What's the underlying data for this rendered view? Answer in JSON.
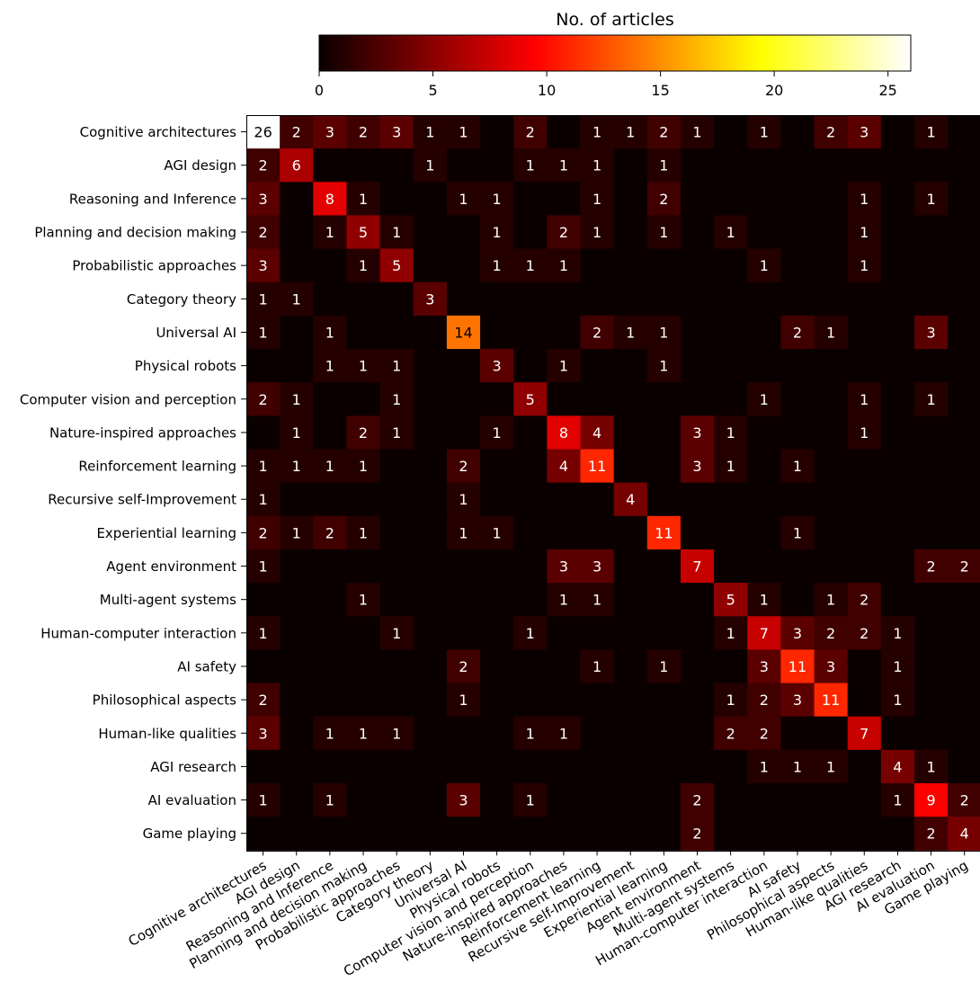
{
  "chart_data": {
    "type": "heatmap",
    "title": "",
    "xlabel": "",
    "ylabel": "",
    "colorbar": {
      "label": "No. of articles",
      "ticks": [
        0,
        5,
        10,
        15,
        20,
        25
      ],
      "range": [
        0,
        26
      ],
      "colormap": "hot"
    },
    "categories": [
      "Cognitive architectures",
      "AGI design",
      "Reasoning and Inference",
      "Planning and decision making",
      "Probabilistic approaches",
      "Category theory",
      "Universal AI",
      "Physical robots",
      "Computer vision and perception",
      "Nature-inspired approaches",
      "Reinforcement learning",
      "Recursive self-Improvement",
      "Experiential learning",
      "Agent environment",
      "Multi-agent systems",
      "Human-computer interaction",
      "AI safety",
      "Philosophical aspects",
      "Human-like qualities",
      "AGI research",
      "AI evaluation",
      "Game playing"
    ],
    "matrix": [
      [
        26,
        2,
        3,
        2,
        3,
        1,
        1,
        0,
        2,
        0,
        1,
        1,
        2,
        1,
        0,
        1,
        0,
        2,
        3,
        0,
        1,
        0
      ],
      [
        2,
        6,
        0,
        0,
        0,
        1,
        0,
        0,
        1,
        1,
        1,
        0,
        1,
        0,
        0,
        0,
        0,
        0,
        0,
        0,
        0,
        0
      ],
      [
        3,
        0,
        8,
        1,
        0,
        0,
        1,
        1,
        0,
        0,
        1,
        0,
        2,
        0,
        0,
        0,
        0,
        0,
        1,
        0,
        1,
        0
      ],
      [
        2,
        0,
        1,
        5,
        1,
        0,
        0,
        1,
        0,
        2,
        1,
        0,
        1,
        0,
        1,
        0,
        0,
        0,
        1,
        0,
        0,
        0
      ],
      [
        3,
        0,
        0,
        1,
        5,
        0,
        0,
        1,
        1,
        1,
        0,
        0,
        0,
        0,
        0,
        1,
        0,
        0,
        1,
        0,
        0,
        0
      ],
      [
        1,
        1,
        0,
        0,
        0,
        3,
        0,
        0,
        0,
        0,
        0,
        0,
        0,
        0,
        0,
        0,
        0,
        0,
        0,
        0,
        0,
        0
      ],
      [
        1,
        0,
        1,
        0,
        0,
        0,
        14,
        0,
        0,
        0,
        2,
        1,
        1,
        0,
        0,
        0,
        2,
        1,
        0,
        0,
        3,
        0
      ],
      [
        0,
        0,
        1,
        1,
        1,
        0,
        0,
        3,
        0,
        1,
        0,
        0,
        1,
        0,
        0,
        0,
        0,
        0,
        0,
        0,
        0,
        0
      ],
      [
        2,
        1,
        0,
        0,
        1,
        0,
        0,
        0,
        5,
        0,
        0,
        0,
        0,
        0,
        0,
        1,
        0,
        0,
        1,
        0,
        1,
        0
      ],
      [
        0,
        1,
        0,
        2,
        1,
        0,
        0,
        1,
        0,
        8,
        4,
        0,
        0,
        3,
        1,
        0,
        0,
        0,
        1,
        0,
        0,
        0
      ],
      [
        1,
        1,
        1,
        1,
        0,
        0,
        2,
        0,
        0,
        4,
        11,
        0,
        0,
        3,
        1,
        0,
        1,
        0,
        0,
        0,
        0,
        0
      ],
      [
        1,
        0,
        0,
        0,
        0,
        0,
        1,
        0,
        0,
        0,
        0,
        4,
        0,
        0,
        0,
        0,
        0,
        0,
        0,
        0,
        0,
        0
      ],
      [
        2,
        1,
        2,
        1,
        0,
        0,
        1,
        1,
        0,
        0,
        0,
        0,
        11,
        0,
        0,
        0,
        1,
        0,
        0,
        0,
        0,
        0
      ],
      [
        1,
        0,
        0,
        0,
        0,
        0,
        0,
        0,
        0,
        3,
        3,
        0,
        0,
        7,
        0,
        0,
        0,
        0,
        0,
        0,
        2,
        2
      ],
      [
        0,
        0,
        0,
        1,
        0,
        0,
        0,
        0,
        0,
        1,
        1,
        0,
        0,
        0,
        5,
        1,
        0,
        1,
        2,
        0,
        0,
        0
      ],
      [
        1,
        0,
        0,
        0,
        1,
        0,
        0,
        0,
        1,
        0,
        0,
        0,
        0,
        0,
        1,
        7,
        3,
        2,
        2,
        1,
        0,
        0
      ],
      [
        0,
        0,
        0,
        0,
        0,
        0,
        2,
        0,
        0,
        0,
        1,
        0,
        1,
        0,
        0,
        3,
        11,
        3,
        0,
        1,
        0,
        0
      ],
      [
        2,
        0,
        0,
        0,
        0,
        0,
        1,
        0,
        0,
        0,
        0,
        0,
        0,
        0,
        1,
        2,
        3,
        11,
        0,
        1,
        0,
        0
      ],
      [
        3,
        0,
        1,
        1,
        1,
        0,
        0,
        0,
        1,
        1,
        0,
        0,
        0,
        0,
        2,
        2,
        0,
        0,
        7,
        0,
        0,
        0
      ],
      [
        0,
        0,
        0,
        0,
        0,
        0,
        0,
        0,
        0,
        0,
        0,
        0,
        0,
        0,
        0,
        1,
        1,
        1,
        0,
        4,
        1,
        0
      ],
      [
        1,
        0,
        1,
        0,
        0,
        0,
        3,
        0,
        1,
        0,
        0,
        0,
        0,
        2,
        0,
        0,
        0,
        0,
        0,
        1,
        9,
        2
      ],
      [
        0,
        0,
        0,
        0,
        0,
        0,
        0,
        0,
        0,
        0,
        0,
        0,
        0,
        2,
        0,
        0,
        0,
        0,
        0,
        0,
        2,
        4
      ]
    ]
  }
}
